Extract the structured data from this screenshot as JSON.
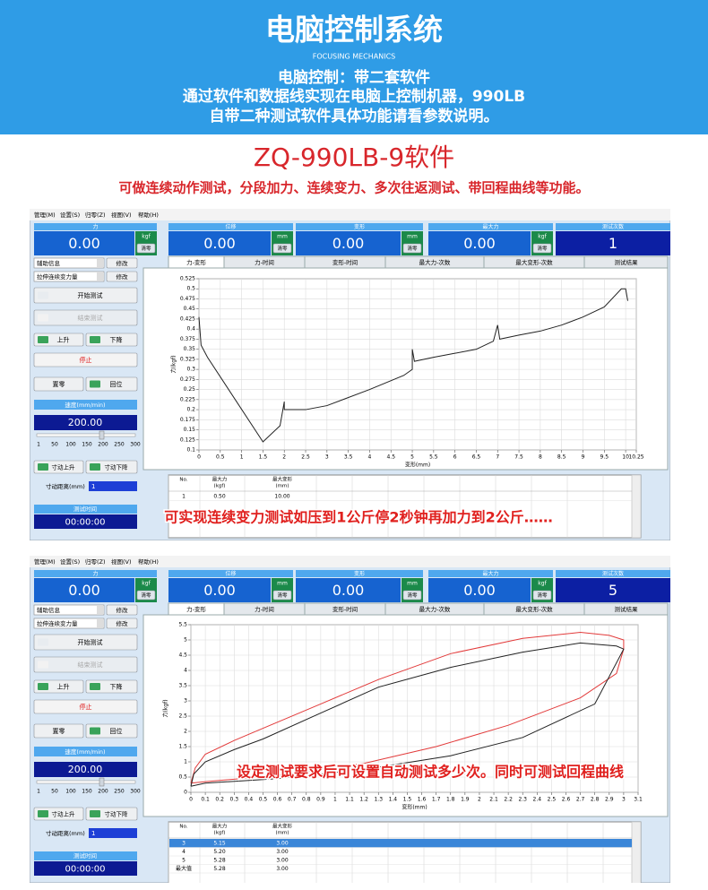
{
  "header": {
    "title": "电脑控制系统",
    "subtitle": "FOCUSING MECHANICS",
    "lines": [
      "电脑控制：带二套软件",
      "通过软件和数据线实现在电脑上控制机器，990LB",
      "自带二种测试软件具体功能请看参数说明。"
    ]
  },
  "product": {
    "title": "ZQ-990LB-9软件",
    "description": "可做连续动作测试，分段加力、连续变力、多次往返测试、带回程曲线等功能。"
  },
  "screens": [
    {
      "menu": [
        "管理(M)",
        "设置(S)",
        "归零(Z)",
        "视图(V)",
        "帮助(H)"
      ],
      "displays": [
        {
          "label": "力",
          "value": "0.00",
          "unit": "kgf",
          "button": "清零"
        },
        {
          "label": "位移",
          "value": "0.00",
          "unit": "mm",
          "button": "清零"
        },
        {
          "label": "变形",
          "value": "0.00",
          "unit": "mm",
          "button": "清零"
        },
        {
          "label": "最大力",
          "value": "0.00",
          "unit": "kgf",
          "button": "清零"
        },
        {
          "label": "测试次数",
          "value": "1"
        }
      ],
      "left": {
        "aux_label": "辅助信息",
        "aux_button": "修改",
        "mode_label": "拉伸连续变力量",
        "mode_button": "修改",
        "start": "开始测试",
        "end": "结束测试",
        "up": "上升",
        "down": "下降",
        "stop": "停止",
        "zero": "置零",
        "return": "回位",
        "speed_label": "速度(mm/min)",
        "speed": "200.00",
        "slider_ticks": [
          1,
          50,
          100,
          150,
          200,
          250,
          300
        ],
        "jog_up": "寸动上升",
        "jog_down": "寸动下降",
        "jog_distance_label": "寸动距离(mm)",
        "jog_distance": "1",
        "time_label": "测试时间",
        "time": "00:00:00"
      },
      "tabs": [
        "力-变形",
        "力-时间",
        "变形-时间",
        "最大力-次数",
        "最大变形-次数",
        "测试结果"
      ],
      "chart": {
        "type": "line",
        "x_label": "变形(mm)",
        "y_label": "力(kgf)",
        "grid": true,
        "xlim": [
          0,
          10.25
        ],
        "ylim": [
          0.1,
          0.525
        ],
        "xticks": [
          0,
          0.5,
          1,
          1.5,
          2,
          2.5,
          3,
          3.5,
          4,
          4.5,
          5,
          5.5,
          6,
          6.5,
          7,
          7.5,
          8,
          8.5,
          9,
          9.5,
          10,
          10.25
        ],
        "yticks": [
          0.1,
          0.125,
          0.15,
          0.175,
          0.2,
          0.225,
          0.25,
          0.275,
          0.3,
          0.325,
          0.35,
          0.375,
          0.4,
          0.425,
          0.45,
          0.475,
          0.5,
          0.525
        ],
        "series": [
          {
            "color": "#222222",
            "x": [
              0,
              0.05,
              0.2,
              1.5,
              1.9,
              2,
              2,
              2.5,
              3,
              4,
              4.8,
              5,
              5,
              5.05,
              5.5,
              6,
              6.5,
              6.9,
              7,
              7.05,
              7.5,
              8,
              8.5,
              9,
              9.5,
              9.9,
              10,
              10.05
            ],
            "y": [
              0.43,
              0.36,
              0.33,
              0.12,
              0.16,
              0.22,
              0.2,
              0.2,
              0.21,
              0.25,
              0.285,
              0.3,
              0.35,
              0.32,
              0.33,
              0.34,
              0.35,
              0.37,
              0.41,
              0.375,
              0.385,
              0.395,
              0.41,
              0.43,
              0.455,
              0.5,
              0.5,
              0.47
            ]
          }
        ]
      },
      "table": {
        "headers": [
          [
            "No."
          ],
          [
            "最大力",
            "(kgf)"
          ],
          [
            "最大变形",
            "(mm)"
          ]
        ],
        "rows": [
          [
            "1",
            "0.50",
            "10.00"
          ]
        ]
      },
      "caption": "可实现连续变力测试如压到1公斤停2秒钟再加力到2公斤……"
    },
    {
      "menu": [
        "管理(M)",
        "设置(S)",
        "归零(Z)",
        "视图(V)",
        "帮助(H)"
      ],
      "displays": [
        {
          "label": "力",
          "value": "0.00",
          "unit": "kgf",
          "button": "清零"
        },
        {
          "label": "位移",
          "value": "0.00",
          "unit": "mm",
          "button": "清零"
        },
        {
          "label": "变形",
          "value": "0.00",
          "unit": "mm",
          "button": "清零"
        },
        {
          "label": "最大力",
          "value": "0.00",
          "unit": "kgf",
          "button": "清零"
        },
        {
          "label": "测试次数",
          "value": "5"
        }
      ],
      "left": {
        "aux_label": "辅助信息",
        "aux_button": "修改",
        "mode_label": "拉伸连续变力量",
        "mode_button": "修改",
        "start": "开始测试",
        "end": "结束测试",
        "up": "上升",
        "down": "下降",
        "stop": "停止",
        "zero": "置零",
        "return": "回位",
        "speed_label": "速度(mm/min)",
        "speed": "200.00",
        "slider_ticks": [
          1,
          50,
          100,
          150,
          200,
          250,
          300
        ],
        "jog_up": "寸动上升",
        "jog_down": "寸动下降",
        "jog_distance_label": "寸动距离(mm)",
        "jog_distance": "1",
        "time_label": "测试时间",
        "time": "00:00:00"
      },
      "tabs": [
        "力-变形",
        "力-时间",
        "变形-时间",
        "最大力-次数",
        "最大变形-次数",
        "测试结果"
      ],
      "chart": {
        "type": "line",
        "x_label": "变形(mm)",
        "y_label": "力(kgf)",
        "grid": true,
        "xlim": [
          0,
          3.1
        ],
        "ylim": [
          0,
          5.5
        ],
        "xticks": [
          0,
          0.1,
          0.2,
          0.3,
          0.4,
          0.5,
          0.6,
          0.7,
          0.8,
          0.9,
          1,
          1.1,
          1.2,
          1.3,
          1.4,
          1.5,
          1.6,
          1.7,
          1.8,
          1.9,
          2,
          2.1,
          2.2,
          2.3,
          2.4,
          2.5,
          2.6,
          2.7,
          2.8,
          2.9,
          3,
          3.1
        ],
        "yticks": [
          0,
          0.5,
          1,
          1.5,
          2,
          2.5,
          3,
          3.5,
          4,
          4.5,
          5,
          5.5
        ],
        "series": [
          {
            "color": "#e23a3a",
            "x": [
              0,
              0.03,
              0.1,
              0.3,
              0.5,
              0.9,
              1.3,
              1.8,
              2.3,
              2.7,
              2.9,
              3,
              3,
              2.95,
              2.7,
              2.2,
              1.7,
              1.2,
              0.6,
              0.1,
              0
            ],
            "y": [
              0.3,
              0.8,
              1.25,
              1.7,
              2.1,
              2.9,
              3.7,
              4.55,
              5.05,
              5.25,
              5.15,
              5,
              4.7,
              3.9,
              3.1,
              2.2,
              1.5,
              0.95,
              0.55,
              0.35,
              0.3
            ]
          },
          {
            "color": "#222222",
            "x": [
              0,
              0.02,
              0.1,
              0.3,
              0.5,
              0.9,
              1.3,
              1.8,
              2.3,
              2.7,
              2.95,
              3,
              2.9,
              2.8,
              2.3,
              1.8,
              1.2,
              0.6,
              0.1,
              0
            ],
            "y": [
              0.2,
              0.6,
              1,
              1.4,
              1.75,
              2.6,
              3.45,
              4.1,
              4.6,
              4.9,
              4.8,
              4.7,
              3.8,
              2.9,
              1.8,
              1.2,
              0.75,
              0.45,
              0.3,
              0.2
            ]
          }
        ]
      },
      "table": {
        "headers": [
          [
            "No."
          ],
          [
            "最大力",
            "(kgf)"
          ],
          [
            "最大变形",
            "(mm)"
          ]
        ],
        "selected_row": 0,
        "rows": [
          [
            "3",
            "5.15",
            "3.00"
          ],
          [
            "4",
            "5.20",
            "3.00"
          ],
          [
            "5",
            "5.28",
            "3.00"
          ],
          [
            "最大值",
            "5.28",
            "3.00"
          ]
        ]
      },
      "caption": "设定测试要求后可设置自动测试多少次。同时可测试回程曲线"
    }
  ]
}
